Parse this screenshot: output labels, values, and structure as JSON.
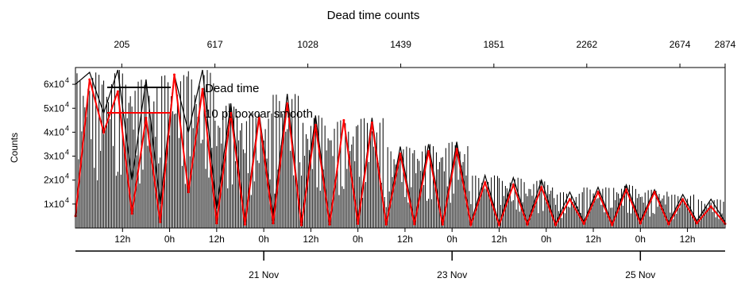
{
  "chart_data": {
    "type": "line",
    "title": "Dead time counts",
    "ylabel": "Counts",
    "xlabel": "",
    "y_ticks": [
      {
        "value": 10000,
        "mantissa": "1x10",
        "exp": "4"
      },
      {
        "value": 20000,
        "mantissa": "2x10",
        "exp": "4"
      },
      {
        "value": 30000,
        "mantissa": "3x10",
        "exp": "4"
      },
      {
        "value": 40000,
        "mantissa": "4x10",
        "exp": "4"
      },
      {
        "value": 50000,
        "mantissa": "5x10",
        "exp": "4"
      },
      {
        "value": 60000,
        "mantissa": "6x10",
        "exp": "4"
      }
    ],
    "ylim": [
      0,
      67000
    ],
    "top_axis": {
      "label": "",
      "ticks": [
        "205",
        "617",
        "1028",
        "1439",
        "1851",
        "2262",
        "2674",
        "2874"
      ],
      "values": [
        205,
        617,
        1028,
        1439,
        1851,
        2262,
        2674,
        2874
      ]
    },
    "x_time_ticks": {
      "hour_labels": [
        "12h",
        "0h",
        "12h",
        "0h",
        "12h",
        "0h",
        "12h",
        "0h",
        "12h",
        "0h",
        "12h",
        "0h",
        "12h"
      ],
      "day_labels": [
        "21 Nov",
        "23 Nov",
        "25 Nov"
      ]
    },
    "legend": {
      "position": "top-left",
      "entries": [
        "Dead time",
        "10 pt boxcar smooth"
      ]
    },
    "series": [
      {
        "name": "Dead time",
        "color": "#000000",
        "x_days": [
          0.0,
          0.15,
          0.3,
          0.45,
          0.6,
          0.75,
          0.9,
          1.05,
          1.2,
          1.35,
          1.5,
          1.65,
          1.8,
          1.95,
          2.1,
          2.25,
          2.4,
          2.55,
          2.7,
          2.85,
          3.0,
          3.15,
          3.3,
          3.45,
          3.6,
          3.75,
          3.9,
          4.05,
          4.2,
          4.35,
          4.5,
          4.65,
          4.8,
          4.95,
          5.1,
          5.25,
          5.4,
          5.55,
          5.7,
          5.85,
          6.0,
          6.15,
          6.3,
          6.45,
          6.6,
          6.75,
          6.9
        ],
        "values": [
          60000,
          65000,
          48000,
          66000,
          20000,
          62000,
          10000,
          64000,
          40000,
          66000,
          8000,
          52000,
          3000,
          48000,
          5000,
          56000,
          2000,
          47000,
          2500,
          45000,
          3500,
          46000,
          2000,
          34000,
          2500,
          35000,
          2200,
          36000,
          2000,
          22000,
          1800,
          21000,
          2000,
          20000,
          1800,
          15000,
          2500,
          17000,
          1800,
          18000,
          3000,
          16000,
          2200,
          14000,
          3000,
          12000,
          2500
        ]
      },
      {
        "name": "10 pt boxcar smooth",
        "color": "#ff0000",
        "x_days": [
          0.0,
          0.15,
          0.3,
          0.45,
          0.6,
          0.75,
          0.9,
          1.05,
          1.2,
          1.35,
          1.5,
          1.65,
          1.8,
          1.95,
          2.1,
          2.25,
          2.4,
          2.55,
          2.7,
          2.85,
          3.0,
          3.15,
          3.3,
          3.45,
          3.6,
          3.75,
          3.9,
          4.05,
          4.2,
          4.35,
          4.5,
          4.65,
          4.8,
          4.95,
          5.1,
          5.25,
          5.4,
          5.55,
          5.7,
          5.85,
          6.0,
          6.15,
          6.3,
          6.45,
          6.6,
          6.75,
          6.9
        ],
        "values": [
          5000,
          62000,
          40000,
          57000,
          6000,
          46000,
          2500,
          64000,
          15000,
          58000,
          2000,
          48000,
          1500,
          46000,
          2000,
          52000,
          1200,
          43000,
          1500,
          45000,
          1800,
          44000,
          1500,
          31000,
          1600,
          32000,
          1500,
          33000,
          1400,
          19000,
          1300,
          18000,
          1500,
          17000,
          1300,
          12000,
          1800,
          15000,
          1300,
          16000,
          2000,
          15000,
          1600,
          12000,
          2000,
          9000,
          1800
        ]
      }
    ],
    "grid": false
  }
}
